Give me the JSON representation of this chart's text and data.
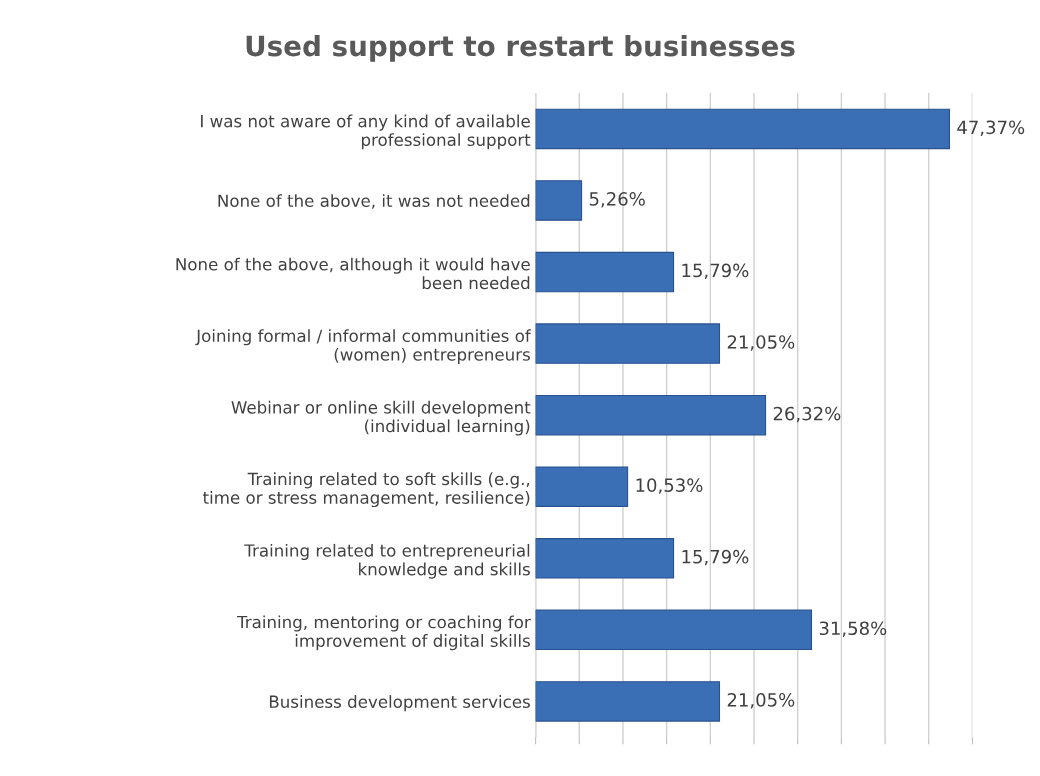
{
  "chart_data": {
    "type": "bar",
    "orientation": "horizontal",
    "title": "Used support to restart businesses",
    "categories": [
      "I was not aware of any kind of available professional support",
      "None of the above, it was not needed",
      "None of the above, although it would have been needed",
      "Joining formal / informal communities of (women) entrepreneurs",
      "Webinar or online skill development (individual learning)",
      "Training related to soft skills (e.g., time or stress management, resilience)",
      "Training related to entrepreneurial knowledge and skills",
      "Training, mentoring or coaching for improvement of digital skills",
      "Business development services"
    ],
    "values": [
      47.37,
      5.26,
      15.79,
      21.05,
      26.32,
      10.53,
      15.79,
      31.58,
      21.05
    ],
    "value_labels": [
      "47,37%",
      "5,26%",
      "15,79%",
      "21,05%",
      "26,32%",
      "10,53%",
      "15,79%",
      "31,58%",
      "21,05%"
    ],
    "color": "#3a6fb5",
    "xlim": [
      0,
      50
    ],
    "xticks": [
      {
        "value": 0,
        "label": null
      },
      {
        "value": 5,
        "label": null
      },
      {
        "value": 10,
        "label": null
      },
      {
        "value": 15,
        "label": null
      },
      {
        "value": 20,
        "label": null
      },
      {
        "value": 25,
        "label": null
      },
      {
        "value": 30,
        "label": null
      },
      {
        "value": 35,
        "label": null
      },
      {
        "value": 40,
        "label": null
      },
      {
        "value": 45,
        "label": null
      },
      {
        "value": 50,
        "label": null
      }
    ],
    "grid": "x",
    "tick_labels": "y"
  }
}
